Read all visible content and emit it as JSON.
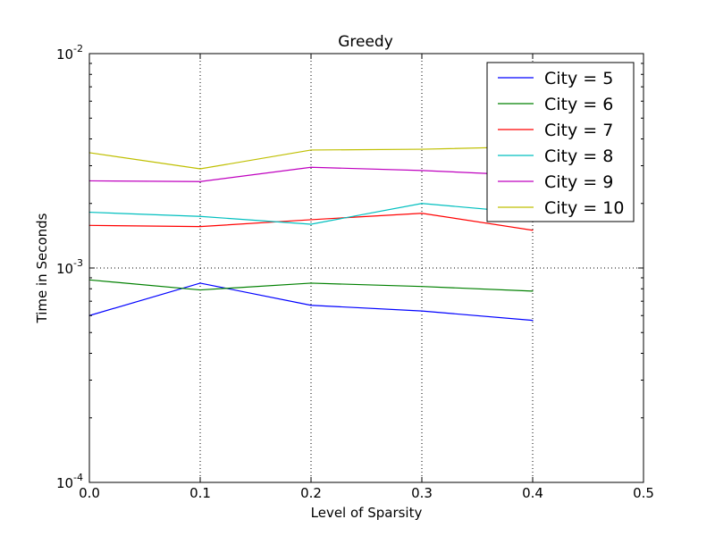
{
  "chart_data": {
    "type": "line",
    "title": "Greedy",
    "xlabel": "Level of Sparsity",
    "ylabel": "Time in Seconds",
    "x": [
      0.0,
      0.1,
      0.2,
      0.3,
      0.4
    ],
    "xlim": [
      0,
      0.5
    ],
    "ylim": [
      0.0001,
      0.01
    ],
    "yscale": "log",
    "grid": true,
    "legend_position": "top-right",
    "x_ticks": [
      "0.0",
      "0.1",
      "0.2",
      "0.3",
      "0.4",
      "0.5"
    ],
    "y_ticks": [
      {
        "value": 0.0001,
        "base": "10",
        "exp": "-4"
      },
      {
        "value": 0.001,
        "base": "10",
        "exp": "-3"
      },
      {
        "value": 0.01,
        "base": "10",
        "exp": "-2"
      }
    ],
    "series": [
      {
        "name": "City = 5",
        "color": "#0000ff",
        "values": [
          0.0006,
          0.00085,
          0.00067,
          0.00063,
          0.00057
        ]
      },
      {
        "name": "City = 6",
        "color": "#008000",
        "values": [
          0.00088,
          0.00079,
          0.00085,
          0.00082,
          0.00078
        ]
      },
      {
        "name": "City = 7",
        "color": "#ff0000",
        "values": [
          0.00158,
          0.00156,
          0.00168,
          0.0018,
          0.0015
        ]
      },
      {
        "name": "City = 8",
        "color": "#00bfbf",
        "values": [
          0.00182,
          0.00174,
          0.0016,
          0.002,
          0.0018
        ]
      },
      {
        "name": "City = 9",
        "color": "#bf00bf",
        "values": [
          0.00255,
          0.00253,
          0.00295,
          0.00285,
          0.0027
        ]
      },
      {
        "name": "City = 10",
        "color": "#bfbf00",
        "values": [
          0.00345,
          0.0029,
          0.00355,
          0.00358,
          0.00368
        ]
      }
    ]
  }
}
